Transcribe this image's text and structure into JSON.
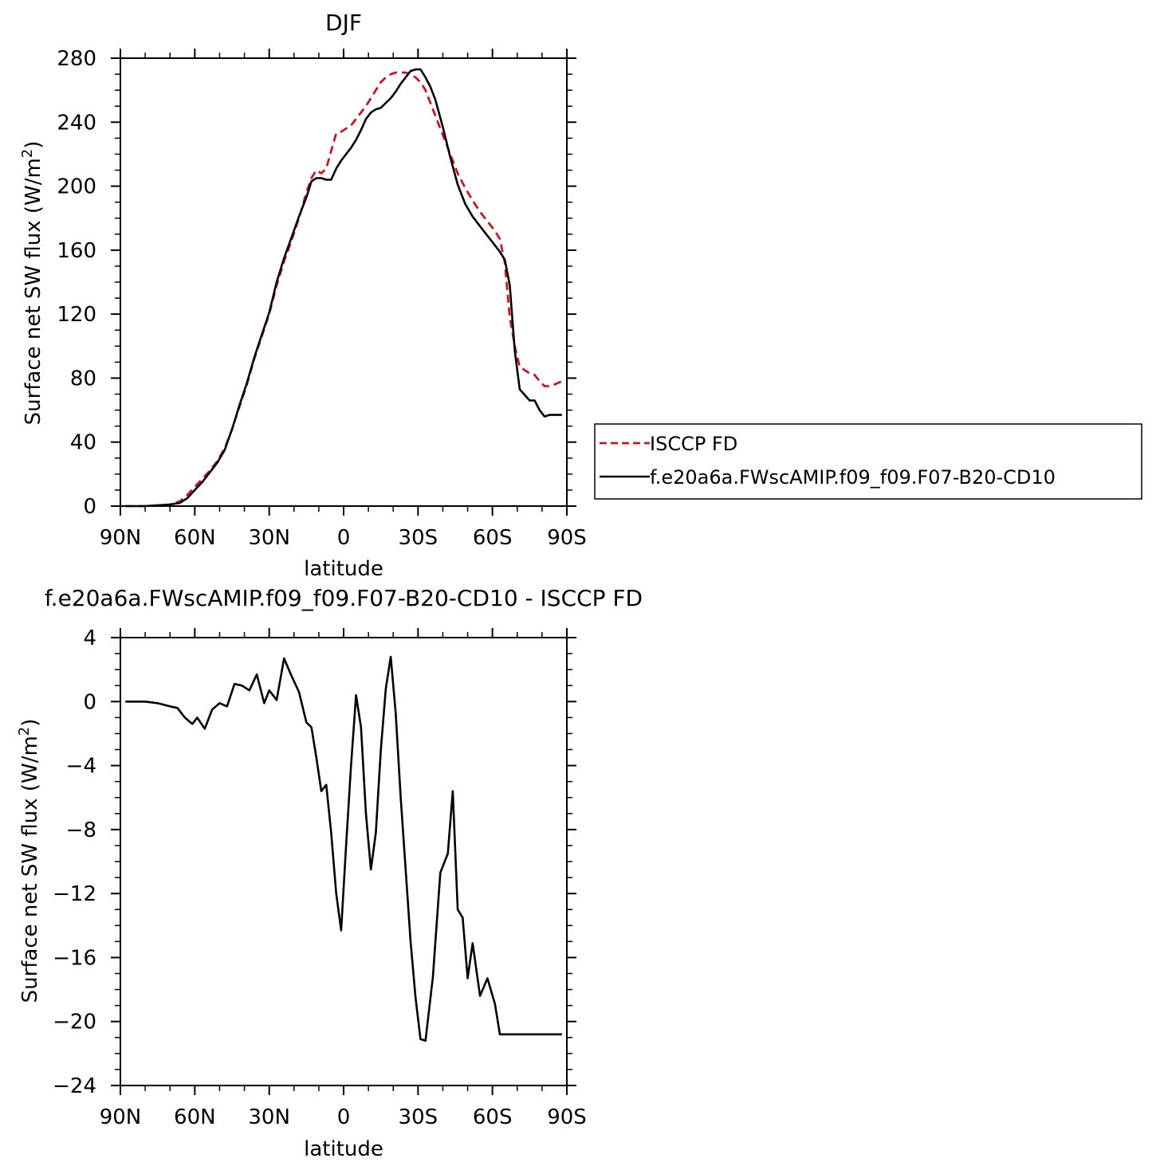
{
  "chart_data": [
    {
      "type": "line",
      "title": "DJF",
      "xlabel": "latitude",
      "ylabel": "Surface net SW flux (W/m",
      "ylabel_sup": "2",
      "ylabel_end": ")",
      "xlim": [
        90,
        -90
      ],
      "ylim": [
        0,
        280
      ],
      "x_ticks": [
        {
          "value": 90,
          "label": "90N"
        },
        {
          "value": 60,
          "label": "60N"
        },
        {
          "value": 30,
          "label": "30N"
        },
        {
          "value": 0,
          "label": "0"
        },
        {
          "value": -30,
          "label": "30S"
        },
        {
          "value": -60,
          "label": "60S"
        },
        {
          "value": -90,
          "label": "90S"
        }
      ],
      "y_ticks": [
        {
          "value": 0,
          "label": "0"
        },
        {
          "value": 40,
          "label": "40"
        },
        {
          "value": 80,
          "label": "80"
        },
        {
          "value": 120,
          "label": "120"
        },
        {
          "value": 160,
          "label": "160"
        },
        {
          "value": 200,
          "label": "200"
        },
        {
          "value": 240,
          "label": "240"
        },
        {
          "value": 280,
          "label": "280"
        }
      ],
      "legend": {
        "placement": "right",
        "entries": [
          {
            "label": "ISCCP FD",
            "color": "#e8000b",
            "dash": "dashed"
          },
          {
            "label": "f.e20a6a.FWscAMIP.f09_f09.F07-B20-CD10",
            "color": "#000000",
            "dash": "solid"
          }
        ]
      },
      "series": [
        {
          "name": "ISCCP FD",
          "color": "#e8000b",
          "dash": "dashed",
          "x": [
            88,
            80,
            70,
            66,
            63,
            60,
            57,
            54,
            51,
            48,
            45,
            42,
            39,
            36,
            33,
            30,
            27,
            24,
            21,
            18,
            15,
            13,
            11,
            9,
            7,
            5,
            3,
            1,
            -1,
            -3,
            -5,
            -7,
            -9,
            -11,
            -13,
            -15,
            -17,
            -19,
            -21,
            -23,
            -25,
            -27,
            -29,
            -31,
            -33,
            -35,
            -37,
            -40,
            -43,
            -46,
            -49,
            -52,
            -55,
            -58,
            -61,
            -63,
            -65,
            -67,
            -69,
            -71,
            -75,
            -77,
            -79,
            -81,
            -83,
            -85,
            -88
          ],
          "y": [
            0,
            0,
            1,
            3,
            7,
            12,
            17,
            22,
            28,
            36,
            48,
            62,
            76,
            92,
            106,
            120,
            138,
            153,
            166,
            180,
            196,
            205,
            210,
            208,
            211,
            222,
            233,
            234,
            236,
            238,
            242,
            246,
            250,
            255,
            260,
            265,
            268,
            270,
            271,
            271,
            271,
            270,
            268,
            265,
            260,
            252,
            244,
            232,
            220,
            208,
            199,
            191,
            184,
            178,
            172,
            167,
            152,
            118,
            100,
            87,
            83,
            82,
            78,
            75,
            75,
            76,
            78
          ]
        },
        {
          "name": "f.e20a6a.FWscAMIP.f09_f09.F07-B20-CD10",
          "color": "#000000",
          "dash": "solid",
          "x": [
            88,
            80,
            70,
            66,
            63,
            60,
            57,
            54,
            51,
            48,
            45,
            42,
            39,
            36,
            33,
            30,
            27,
            24,
            21,
            18,
            15,
            13,
            11,
            9,
            7,
            5,
            3,
            1,
            -1,
            -3,
            -5,
            -7,
            -9,
            -11,
            -13,
            -15,
            -17,
            -19,
            -21,
            -23,
            -25,
            -27,
            -29,
            -31,
            -33,
            -35,
            -37,
            -40,
            -43,
            -46,
            -49,
            -52,
            -55,
            -58,
            -61,
            -63,
            -65,
            -67,
            -69,
            -71,
            -75,
            -77,
            -79,
            -81,
            -83,
            -85,
            -88
          ],
          "y": [
            0,
            0,
            1,
            2,
            5,
            10,
            15,
            21,
            27,
            35,
            48,
            63,
            77,
            93,
            107,
            121,
            140,
            155,
            168,
            181,
            193,
            203,
            205,
            205,
            204,
            204,
            211,
            216,
            220,
            224,
            229,
            235,
            242,
            246,
            248,
            249,
            252,
            255,
            259,
            264,
            268,
            272,
            273,
            273,
            268,
            262,
            254,
            237,
            218,
            201,
            189,
            181,
            175,
            169,
            163,
            159,
            154,
            138,
            97,
            73,
            66,
            66,
            60,
            56,
            57,
            57,
            57
          ]
        }
      ]
    },
    {
      "type": "line",
      "title": "f.e20a6a.FWscAMIP.f09_f09.F07-B20-CD10 - ISCCP FD",
      "xlabel": "latitude",
      "ylabel": "Surface net SW flux (W/m",
      "ylabel_sup": "2",
      "ylabel_end": ")",
      "xlim": [
        90,
        -90
      ],
      "ylim": [
        -24,
        4
      ],
      "x_ticks": [
        {
          "value": 90,
          "label": "90N"
        },
        {
          "value": 60,
          "label": "60N"
        },
        {
          "value": 30,
          "label": "30N"
        },
        {
          "value": 0,
          "label": "0"
        },
        {
          "value": -30,
          "label": "30S"
        },
        {
          "value": -60,
          "label": "60S"
        },
        {
          "value": -90,
          "label": "90S"
        }
      ],
      "y_ticks": [
        {
          "value": -24,
          "label": "−24"
        },
        {
          "value": -20,
          "label": "−20"
        },
        {
          "value": -16,
          "label": "−16"
        },
        {
          "value": -12,
          "label": "−12"
        },
        {
          "value": -8,
          "label": "−8"
        },
        {
          "value": -4,
          "label": "−4"
        },
        {
          "value": 0,
          "label": "0"
        },
        {
          "value": 4,
          "label": "4"
        }
      ],
      "series": [
        {
          "color": "#000000",
          "dash": "solid",
          "x": [
            88,
            80,
            75,
            70,
            67,
            64,
            61,
            59,
            56,
            53,
            50,
            47,
            44,
            41,
            38,
            35,
            32,
            30,
            27,
            24,
            21,
            18,
            15,
            13,
            11,
            9,
            7,
            5,
            3,
            1,
            -1,
            -3,
            -5,
            -7,
            -9,
            -11,
            -13,
            -15,
            -17,
            -19,
            -21,
            -23,
            -25,
            -27,
            -29,
            -31,
            -33,
            -36,
            -39,
            -42,
            -44,
            -46,
            -48,
            -50,
            -52,
            -55,
            -58,
            -61,
            -63,
            -65,
            -67,
            -69,
            -71,
            -73,
            -75,
            -77,
            -79,
            -81,
            -83,
            -85,
            -88
          ],
          "y": [
            0,
            0,
            -0.1,
            -0.3,
            -0.4,
            -1.0,
            -1.4,
            -1.0,
            -1.7,
            -0.5,
            -0.1,
            -0.3,
            1.1,
            1.0,
            0.7,
            1.7,
            -0.1,
            0.7,
            0.1,
            2.7,
            1.6,
            0.6,
            -1.3,
            -1.6,
            -3.5,
            -5.6,
            -5.2,
            -8.2,
            -12.0,
            -14.3,
            -9.0,
            -4.0,
            0.4,
            -1.6,
            -7.0,
            -10.5,
            -8.2,
            -3.0,
            0.8,
            2.8,
            -0.7,
            -6.0,
            -10.5,
            -15.0,
            -18.5,
            -21.1,
            -21.2,
            -17.2,
            -10.7,
            -9.5,
            -5.6,
            -13.0,
            -13.5,
            -17.3,
            -15.1,
            -18.4,
            -17.3,
            -18.9,
            -20.8,
            -20.8,
            -20.8,
            -20.8,
            -20.8,
            -20.8,
            -20.8,
            -20.8,
            -20.8,
            -20.8,
            -20.8,
            -20.8,
            -20.8
          ]
        }
      ]
    }
  ]
}
